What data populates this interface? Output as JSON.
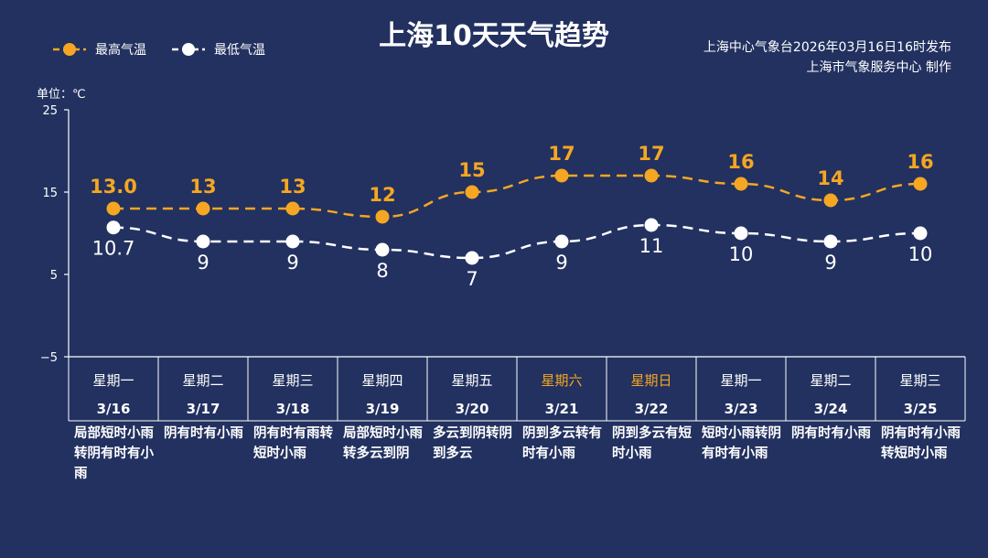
{
  "title": "上海10天天气趋势",
  "legend": {
    "high": "最高气温",
    "low": "最低气温"
  },
  "credit": {
    "line1": "上海中心气象台2026年03月16日16时发布",
    "line2": "上海市气象服务中心  制作"
  },
  "colors": {
    "background": "#22315f",
    "high": "#f5a623",
    "low": "#ffffff"
  },
  "chart_data": {
    "type": "line",
    "ylabel": "单位：℃",
    "ylim": [
      -5,
      25
    ],
    "yticks": [
      "25",
      "15",
      "5",
      "−5"
    ],
    "ytick_values": [
      25,
      15,
      5,
      -5
    ],
    "grid": false,
    "legend_position": "top-left",
    "categories": [
      "3/16",
      "3/17",
      "3/18",
      "3/19",
      "3/20",
      "3/21",
      "3/22",
      "3/23",
      "3/24",
      "3/25"
    ],
    "weekdays": [
      "星期一",
      "星期二",
      "星期三",
      "星期四",
      "星期五",
      "星期六",
      "星期日",
      "星期一",
      "星期二",
      "星期三"
    ],
    "weekend": [
      false,
      false,
      false,
      false,
      false,
      true,
      true,
      false,
      false,
      false
    ],
    "series": [
      {
        "name": "最高气温",
        "values": [
          13.0,
          13,
          13,
          12,
          15,
          17,
          17,
          16,
          14,
          16
        ],
        "labels": [
          "13.0",
          "13",
          "13",
          "12",
          "15",
          "17",
          "17",
          "16",
          "14",
          "16"
        ]
      },
      {
        "name": "最低气温",
        "values": [
          10.7,
          9,
          9,
          8,
          7,
          9,
          11,
          10,
          9,
          10
        ],
        "labels": [
          "10.7",
          "9",
          "9",
          "8",
          "7",
          "9",
          "11",
          "10",
          "9",
          "10"
        ]
      }
    ],
    "weather": [
      "局部短时小雨转阴有时有小雨",
      "阴有时有小雨",
      "阴有时有雨转短时小雨",
      "局部短时小雨转多云到阴",
      "多云到阴转阴到多云",
      "阴到多云转有时有小雨",
      "阴到多云有短时小雨",
      "短时小雨转阴有时有小雨",
      "阴有时有小雨",
      "阴有时有小雨转短时小雨"
    ]
  }
}
